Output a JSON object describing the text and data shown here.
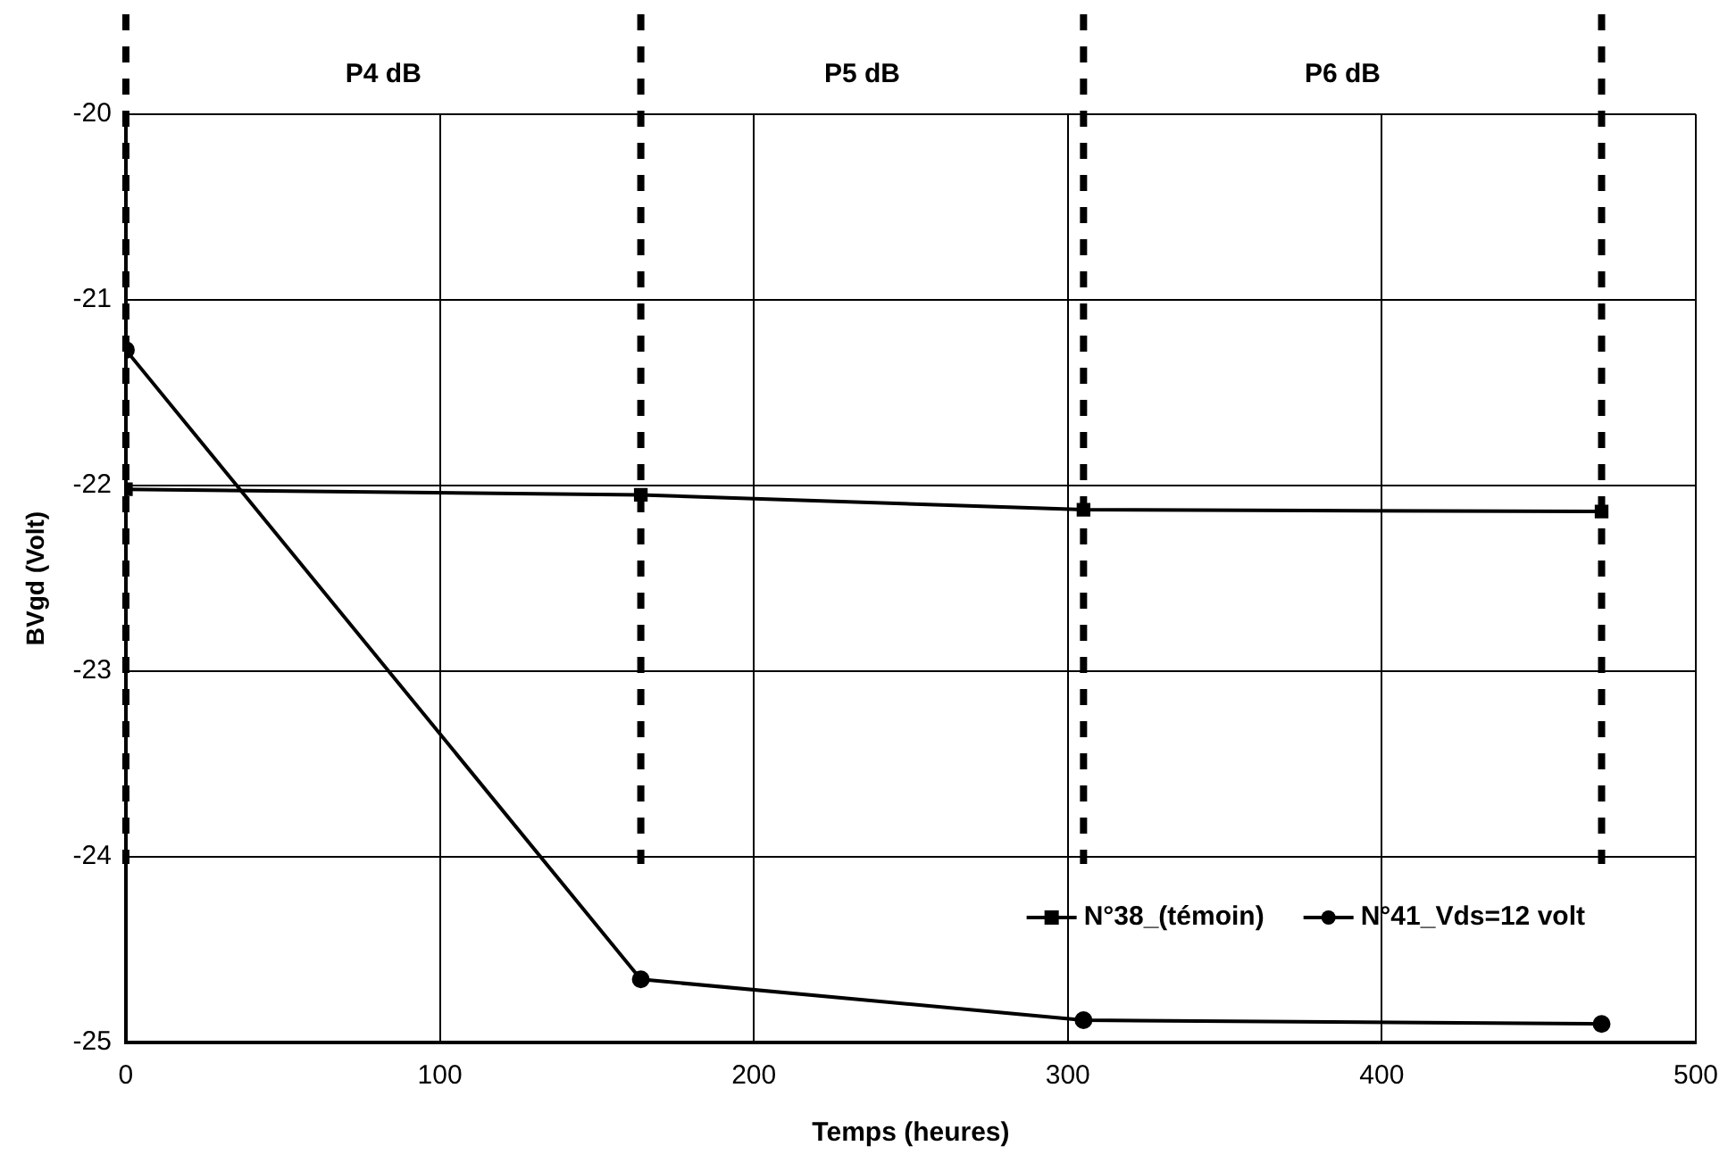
{
  "chart_data": {
    "type": "line",
    "xlabel": "Temps (heures)",
    "ylabel": "BVgd (Volt)",
    "x": [
      0,
      164,
      305,
      470
    ],
    "series": [
      {
        "name": "N°38_(témoin)",
        "color": "#000000",
        "marker": "square",
        "values": [
          -22.02,
          -22.05,
          -22.13,
          -22.14
        ]
      },
      {
        "name": "N°41_Vds=12 volt",
        "color": "#000000",
        "marker": "circle",
        "values": [
          -21.27,
          -24.66,
          -24.88,
          -24.9
        ]
      }
    ],
    "xlim": [
      0,
      500
    ],
    "xticks": [
      0,
      100,
      200,
      300,
      400,
      500
    ],
    "ylim": [
      -25,
      -20
    ],
    "yticks": [
      -25,
      -24,
      -23,
      -22,
      -21,
      -20
    ],
    "grid": true,
    "legend": "bottom right",
    "line_style": "solid",
    "ref_lines": [
      {
        "axis": "x",
        "value": 0,
        "color": "#000000",
        "line_style": "dashed"
      },
      {
        "axis": "x",
        "value": 164,
        "color": "#000000",
        "line_style": "dashed"
      },
      {
        "axis": "x",
        "value": 305,
        "color": "#000000",
        "line_style": "dashed"
      },
      {
        "axis": "x",
        "value": 470,
        "color": "#000000",
        "line_style": "dashed"
      }
    ],
    "annotations": [
      "P4 dB",
      "P5 dB",
      "P6 dB"
    ]
  }
}
